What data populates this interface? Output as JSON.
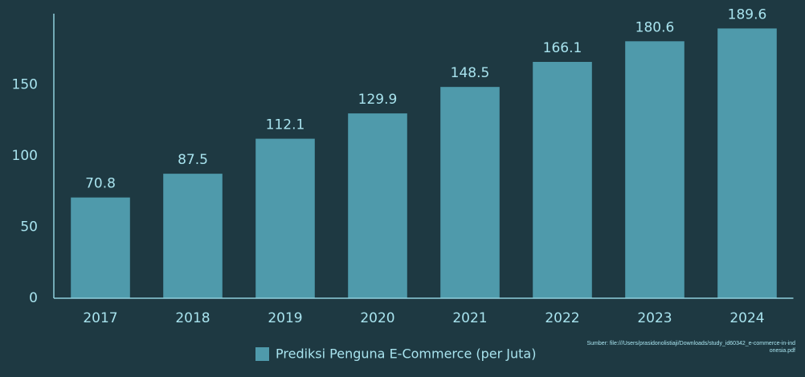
{
  "chart_data": {
    "type": "bar",
    "categories": [
      "2017",
      "2018",
      "2019",
      "2020",
      "2021",
      "2022",
      "2023",
      "2024"
    ],
    "series": [
      {
        "name": "Prediksi Penguna E-Commerce (per Juta)",
        "color": "#4f9aab",
        "values": [
          70.8,
          87.5,
          112.1,
          129.9,
          148.5,
          166.1,
          180.6,
          189.6
        ]
      }
    ],
    "ylim": [
      0,
      200
    ],
    "yticks": [
      0,
      50,
      100,
      150
    ],
    "grid": false,
    "source": "Sumber: file:///Users/prasidonolistiaji/Downloads/study_id60342_e-commerce-in-indonesia.pdf"
  }
}
